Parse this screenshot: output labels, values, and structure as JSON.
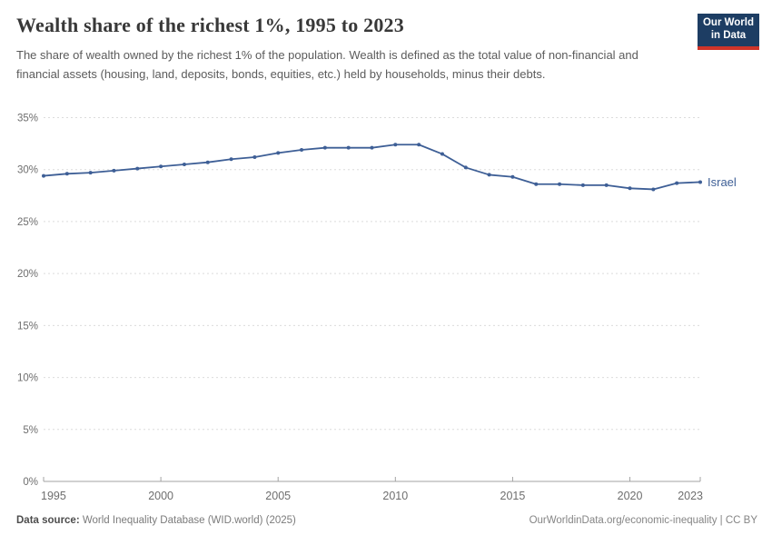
{
  "header": {
    "title": "Wealth share of the richest 1%, 1995 to 2023",
    "subtitle": "The share of wealth owned by the richest 1% of the population. Wealth is defined as the total value of non-financial and financial assets (housing, land, deposits, bonds, equities, etc.) held by households, minus their debts.",
    "logo": {
      "line1": "Our World",
      "line2": "in Data",
      "bg_color": "#1d3d63",
      "accent_color": "#cf3429"
    }
  },
  "chart_data": {
    "type": "line",
    "title": "Wealth share of the richest 1%, 1995 to 2023",
    "x": [
      1995,
      1996,
      1997,
      1998,
      1999,
      2000,
      2001,
      2002,
      2003,
      2004,
      2005,
      2006,
      2007,
      2008,
      2009,
      2010,
      2011,
      2012,
      2013,
      2014,
      2015,
      2016,
      2017,
      2018,
      2019,
      2020,
      2021,
      2022,
      2023
    ],
    "series": [
      {
        "name": "Israel",
        "color": "#3e5f96",
        "values": [
          29.4,
          29.6,
          29.7,
          29.9,
          30.1,
          30.3,
          30.5,
          30.7,
          31.0,
          31.2,
          31.6,
          31.9,
          32.1,
          32.1,
          32.1,
          32.4,
          32.4,
          31.5,
          30.2,
          29.5,
          29.3,
          28.6,
          28.6,
          28.5,
          28.5,
          28.2,
          28.1,
          28.7,
          28.8
        ]
      }
    ],
    "xlabel": "",
    "ylabel": "",
    "ylim": [
      0,
      35
    ],
    "y_ticks": [
      0,
      5,
      10,
      15,
      20,
      25,
      30,
      35
    ],
    "y_tick_suffix": "%",
    "x_ticks": [
      1995,
      2000,
      2005,
      2010,
      2015,
      2020,
      2023
    ],
    "grid": "horizontal-dashed",
    "legend_position": "end-of-line-label",
    "grid_color": "#dcdcdc",
    "axis_color": "#a3a3a3",
    "tick_label_color": "#6e6e6e"
  },
  "footer": {
    "datasource_label": "Data source:",
    "datasource_value": " World Inequality Database (WID.world) (2025)",
    "link": "OurWorldinData.org/economic-inequality | CC BY"
  }
}
